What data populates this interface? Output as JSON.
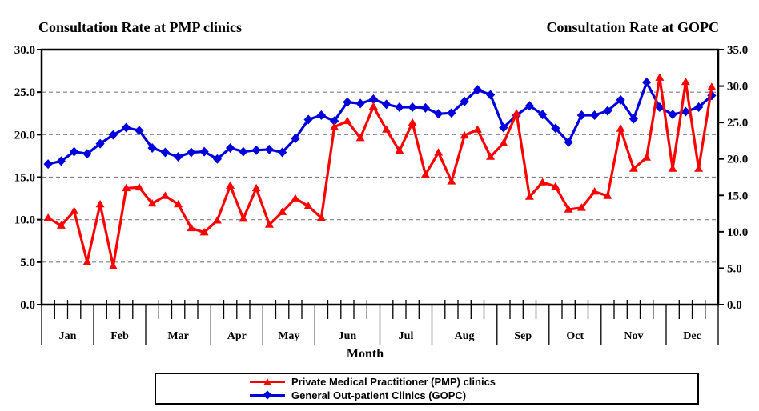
{
  "titles": {
    "left": "Consultation Rate at PMP clinics",
    "right": "Consultation Rate at GOPC"
  },
  "xlabel": "Month",
  "legend": {
    "items": [
      {
        "label": "Private Medical Practitioner (PMP) clinics",
        "marker": "triangle",
        "color": "#ff0000"
      },
      {
        "label": "General Out-patient Clinics (GOPC)",
        "marker": "diamond",
        "color": "#0000dd"
      }
    ]
  },
  "chart_data": {
    "type": "line",
    "x_months": [
      "Jan",
      "Feb",
      "Mar",
      "Apr",
      "May",
      "Jun",
      "Jul",
      "Aug",
      "Sep",
      "Oct",
      "Nov",
      "Dec"
    ],
    "weeks_per_month": [
      4,
      4,
      5,
      4,
      4,
      5,
      4,
      5,
      4,
      4,
      5,
      4
    ],
    "left_axis": {
      "title": "Consultation Rate at PMP clinics",
      "min": 0,
      "max": 30,
      "step": 5,
      "tick_labels": [
        "30.0",
        "25.0",
        "20.0",
        "15.0",
        "10.0",
        "5.0",
        "0.0"
      ]
    },
    "right_axis": {
      "title": "Consultation Rate at GOPC",
      "min": 0,
      "max": 35,
      "step": 5,
      "tick_labels": [
        "35.0",
        "30.0",
        "25.0",
        "20.0",
        "15.0",
        "10.0",
        "5.0",
        "0.0"
      ]
    },
    "gridlines": {
      "left_values": [
        5,
        10,
        15,
        20,
        25
      ],
      "style": "dashed",
      "color": "#7f7f7f"
    },
    "series": [
      {
        "name": "Private Medical Practitioner (PMP) clinics",
        "axis": "left",
        "color": "#ff0000",
        "marker": "triangle",
        "values": [
          10.2,
          9.3,
          11.0,
          5.0,
          11.8,
          4.5,
          13.7,
          13.8,
          11.9,
          12.8,
          11.8,
          9.0,
          8.5,
          9.9,
          14.0,
          10.1,
          13.7,
          9.4,
          10.9,
          12.5,
          11.6,
          10.2,
          20.9,
          21.6,
          19.6,
          23.3,
          20.6,
          18.1,
          21.4,
          15.3,
          17.9,
          14.5,
          19.9,
          20.6,
          17.4,
          19.0,
          22.5,
          12.7,
          14.4,
          13.9,
          11.2,
          11.4,
          13.3,
          12.8,
          20.7,
          16.0,
          17.3,
          26.7,
          16.0,
          26.2,
          16.0,
          25.6
        ]
      },
      {
        "name": "General Out-patient Clinics (GOPC)",
        "axis": "right",
        "color": "#0000dd",
        "marker": "diamond",
        "values": [
          19.3,
          19.7,
          21.0,
          20.7,
          22.1,
          23.3,
          24.3,
          23.9,
          21.5,
          20.9,
          20.3,
          20.9,
          21.0,
          20.0,
          21.5,
          21.0,
          21.2,
          21.3,
          20.9,
          22.8,
          25.4,
          26.0,
          25.2,
          27.8,
          27.6,
          28.2,
          27.5,
          27.1,
          27.1,
          27.0,
          26.2,
          26.3,
          27.9,
          29.5,
          28.8,
          24.3,
          26.0,
          27.3,
          26.1,
          24.2,
          22.3,
          26.0,
          26.0,
          26.6,
          28.1,
          25.5,
          30.5,
          27.1,
          26.1,
          26.5,
          27.1,
          28.7
        ]
      }
    ]
  }
}
